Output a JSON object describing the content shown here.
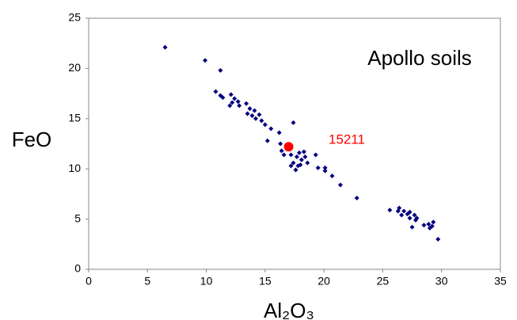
{
  "chart_data": {
    "type": "scatter",
    "x_label": "Al₂O₃",
    "y_label": "FeO",
    "annotations": [
      "Apollo soils",
      "15211"
    ],
    "xlim": [
      0,
      35
    ],
    "xticks": [
      0,
      5,
      10,
      15,
      20,
      25,
      30,
      35
    ],
    "ylim": [
      0,
      25
    ],
    "yticks": [
      0,
      5,
      10,
      15,
      20,
      25
    ],
    "grid": false,
    "series": [
      {
        "color": "#000080",
        "marker": "diamond",
        "x": [
          6.5,
          9.9,
          11.2,
          10.8,
          11.2,
          11.4,
          12.1,
          12.2,
          12.4,
          12.7,
          12.0,
          12.8,
          13.4,
          13.7,
          13.5,
          13.9,
          14.1,
          14.2,
          14.5,
          14.7,
          15.0,
          15.5,
          15.2,
          16.2,
          16.3,
          16.4,
          16.6,
          16.9,
          17.2,
          17.4,
          17.4,
          17.6,
          17.7,
          17.9,
          18.1,
          18.3,
          17.8,
          18.0,
          17.2,
          18.4,
          18.6,
          19.3,
          19.5,
          20.1,
          20.1,
          20.7,
          21.4,
          22.8,
          25.6,
          26.3,
          26.4,
          26.6,
          26.8,
          27.1,
          27.3,
          27.3,
          27.7,
          27.8,
          27.5,
          27.9,
          28.5,
          28.9,
          29.0,
          29.3,
          29.2,
          29.7
        ],
        "values": [
          22.1,
          20.8,
          19.8,
          17.7,
          17.3,
          17.1,
          17.4,
          16.6,
          17.0,
          16.7,
          16.3,
          16.3,
          16.5,
          16.0,
          15.5,
          15.3,
          15.8,
          15.0,
          15.4,
          14.8,
          14.4,
          14.0,
          12.8,
          13.6,
          12.5,
          11.8,
          11.4,
          12.0,
          11.4,
          14.6,
          10.6,
          9.9,
          11.2,
          11.6,
          10.9,
          11.7,
          10.3,
          10.4,
          10.3,
          11.2,
          10.6,
          11.4,
          10.1,
          10.1,
          9.8,
          9.3,
          8.4,
          7.1,
          5.9,
          5.8,
          6.1,
          5.4,
          5.8,
          5.5,
          5.7,
          5.1,
          5.4,
          4.9,
          4.2,
          5.1,
          4.4,
          4.5,
          4.1,
          4.7,
          4.3,
          3.0
        ]
      },
      {
        "color": "#ff0000",
        "marker": "circle",
        "x": [
          17.0
        ],
        "values": [
          12.2
        ]
      }
    ]
  }
}
